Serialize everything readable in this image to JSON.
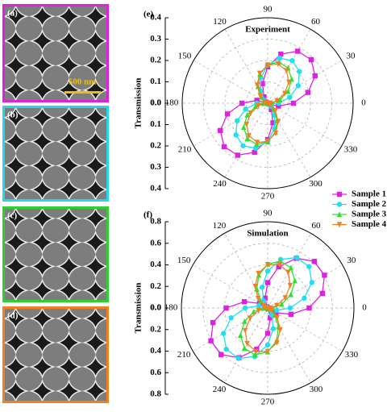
{
  "panels": {
    "labels": [
      "(a)",
      "(b)",
      "(c)",
      "(d)"
    ],
    "colors": [
      "#e020e0",
      "#20d8f0",
      "#30d030",
      "#f08020"
    ],
    "scale_bar": "500 nm"
  },
  "chart_data": [
    {
      "type": "polar",
      "panel_label": "(e)",
      "title": "Experiment",
      "ylabel": "Transmission",
      "theta": [
        0,
        15,
        30,
        45,
        60,
        75,
        90,
        105,
        120,
        135,
        150,
        165,
        180,
        195,
        210,
        225,
        240,
        255,
        270,
        285,
        300,
        315,
        330,
        345
      ],
      "thetaticks": [
        0,
        30,
        60,
        90,
        120,
        150,
        180,
        210,
        240,
        270,
        300,
        330
      ],
      "rlim": [
        0,
        0.4
      ],
      "rticks": [
        {
          "value": 0,
          "label": "0.0"
        },
        0.1,
        0.2,
        0.3,
        0.4
      ],
      "grid": true,
      "legend": "bottom-right",
      "series": [
        {
          "name": "Sample 1",
          "color": "#e020e0",
          "marker": "square",
          "values": [
            0.12,
            0.195,
            0.256,
            0.288,
            0.281,
            0.238,
            0.17,
            0.095,
            0.034,
            0.002,
            0.009,
            0.052,
            0.12,
            0.195,
            0.256,
            0.288,
            0.281,
            0.238,
            0.17,
            0.095,
            0.034,
            0.002,
            0.009,
            0.052
          ]
        },
        {
          "name": "Sample 2",
          "color": "#20e0f0",
          "marker": "circle",
          "values": [
            0.051,
            0.107,
            0.165,
            0.21,
            0.23,
            0.218,
            0.179,
            0.123,
            0.065,
            0.02,
            0.0,
            0.012,
            0.051,
            0.107,
            0.165,
            0.21,
            0.23,
            0.218,
            0.179,
            0.123,
            0.065,
            0.02,
            0.0,
            0.012
          ]
        },
        {
          "name": "Sample 3",
          "color": "#30e030",
          "marker": "triangle",
          "values": [
            0.019,
            0.059,
            0.11,
            0.159,
            0.191,
            0.199,
            0.181,
            0.141,
            0.09,
            0.041,
            0.009,
            0.001,
            0.019,
            0.059,
            0.11,
            0.159,
            0.191,
            0.199,
            0.181,
            0.141,
            0.09,
            0.041,
            0.009,
            0.001
          ]
        },
        {
          "name": "Sample 4",
          "color": "#f08020",
          "marker": "triangle-down",
          "values": [
            0.011,
            0.045,
            0.092,
            0.14,
            0.176,
            0.19,
            0.179,
            0.145,
            0.098,
            0.05,
            0.014,
            0.0,
            0.011,
            0.045,
            0.092,
            0.14,
            0.176,
            0.19,
            0.179,
            0.145,
            0.098,
            0.05,
            0.014,
            0.0
          ]
        }
      ]
    },
    {
      "type": "polar",
      "panel_label": "(f)",
      "title": "Simulation",
      "ylabel": "Transmission",
      "theta": [
        0,
        15,
        30,
        45,
        60,
        75,
        90,
        105,
        120,
        135,
        150,
        165,
        180,
        195,
        210,
        225,
        240,
        255,
        270,
        285,
        300,
        315,
        330,
        345
      ],
      "thetaticks": [
        0,
        30,
        60,
        90,
        120,
        150,
        180,
        210,
        240,
        270,
        300,
        330
      ],
      "rlim": [
        0,
        0.8
      ],
      "rticks": [
        {
          "value": 0,
          "label": "0.0"
        },
        0.2,
        0.4,
        0.6,
        0.8
      ],
      "grid": true,
      "series": [
        {
          "color": "#e020e0",
          "marker": "square",
          "values": [
            0.385,
            0.525,
            0.608,
            0.611,
            0.533,
            0.396,
            0.235,
            0.095,
            0.012,
            0.009,
            0.087,
            0.224,
            0.385,
            0.525,
            0.608,
            0.611,
            0.533,
            0.396,
            0.235,
            0.095,
            0.012,
            0.009,
            0.087,
            0.224
          ]
        },
        {
          "color": "#20e0f0",
          "marker": "circle",
          "values": [
            0.208,
            0.351,
            0.473,
            0.542,
            0.54,
            0.466,
            0.342,
            0.199,
            0.077,
            0.008,
            0.01,
            0.084,
            0.208,
            0.351,
            0.473,
            0.542,
            0.54,
            0.466,
            0.342,
            0.199,
            0.077,
            0.008,
            0.01,
            0.084
          ]
        },
        {
          "color": "#30e030",
          "marker": "triangle",
          "values": [
            0.043,
            0.134,
            0.248,
            0.357,
            0.431,
            0.449,
            0.407,
            0.316,
            0.202,
            0.093,
            0.019,
            0.001,
            0.043,
            0.134,
            0.248,
            0.357,
            0.431,
            0.449,
            0.407,
            0.316,
            0.202,
            0.093,
            0.019,
            0.001
          ]
        },
        {
          "color": "#f08020",
          "marker": "triangle-down",
          "values": [
            0.018,
            0.087,
            0.188,
            0.295,
            0.38,
            0.419,
            0.402,
            0.333,
            0.232,
            0.125,
            0.04,
            0.001,
            0.018,
            0.087,
            0.188,
            0.295,
            0.38,
            0.419,
            0.402,
            0.333,
            0.232,
            0.125,
            0.04,
            0.001
          ]
        }
      ]
    }
  ]
}
